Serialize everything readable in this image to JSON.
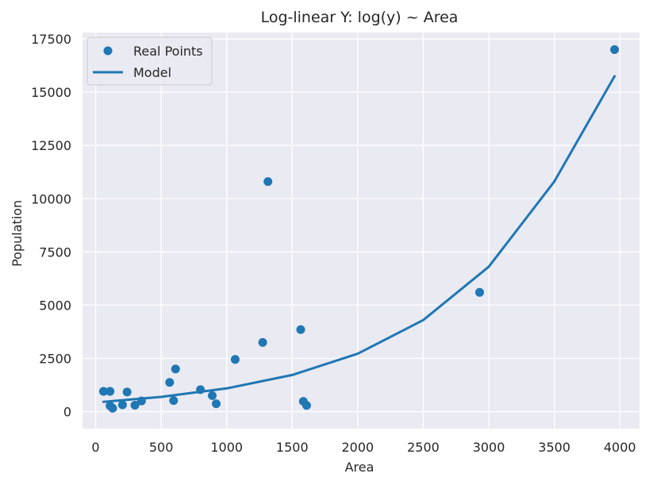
{
  "chart_data": {
    "type": "scatter",
    "title": "Log-linear Y: log(y) ~ Area",
    "xlabel": "Area",
    "ylabel": "Population",
    "xlim": [
      -100,
      4150
    ],
    "ylim": [
      -800,
      17800
    ],
    "xticks": [
      0,
      500,
      1000,
      1500,
      2000,
      2500,
      3000,
      3500,
      4000
    ],
    "yticks": [
      0,
      2500,
      5000,
      7500,
      10000,
      12500,
      15000,
      17500
    ],
    "grid": true,
    "legend_position": "upper-left",
    "colors": {
      "background": "#eaeaf2",
      "grid": "#ffffff",
      "series": "#1f77b4"
    },
    "series": [
      {
        "name": "Real Points",
        "kind": "scatter",
        "points": [
          {
            "x": 60,
            "y": 950
          },
          {
            "x": 110,
            "y": 950
          },
          {
            "x": 110,
            "y": 270
          },
          {
            "x": 130,
            "y": 160
          },
          {
            "x": 205,
            "y": 320
          },
          {
            "x": 240,
            "y": 920
          },
          {
            "x": 300,
            "y": 300
          },
          {
            "x": 350,
            "y": 500
          },
          {
            "x": 565,
            "y": 1370
          },
          {
            "x": 595,
            "y": 520
          },
          {
            "x": 610,
            "y": 2000
          },
          {
            "x": 800,
            "y": 1030
          },
          {
            "x": 890,
            "y": 750
          },
          {
            "x": 920,
            "y": 370
          },
          {
            "x": 1065,
            "y": 2450
          },
          {
            "x": 1275,
            "y": 3250
          },
          {
            "x": 1315,
            "y": 10800
          },
          {
            "x": 1565,
            "y": 3850
          },
          {
            "x": 1585,
            "y": 480
          },
          {
            "x": 1610,
            "y": 290
          },
          {
            "x": 2930,
            "y": 5600
          },
          {
            "x": 3960,
            "y": 17000
          }
        ]
      },
      {
        "name": "Model",
        "kind": "line",
        "points": [
          {
            "x": 60,
            "y": 460
          },
          {
            "x": 500,
            "y": 690
          },
          {
            "x": 1000,
            "y": 1090
          },
          {
            "x": 1500,
            "y": 1720
          },
          {
            "x": 2000,
            "y": 2720
          },
          {
            "x": 2500,
            "y": 4300
          },
          {
            "x": 3000,
            "y": 6800
          },
          {
            "x": 3500,
            "y": 10800
          },
          {
            "x": 3960,
            "y": 15750
          }
        ]
      }
    ]
  }
}
